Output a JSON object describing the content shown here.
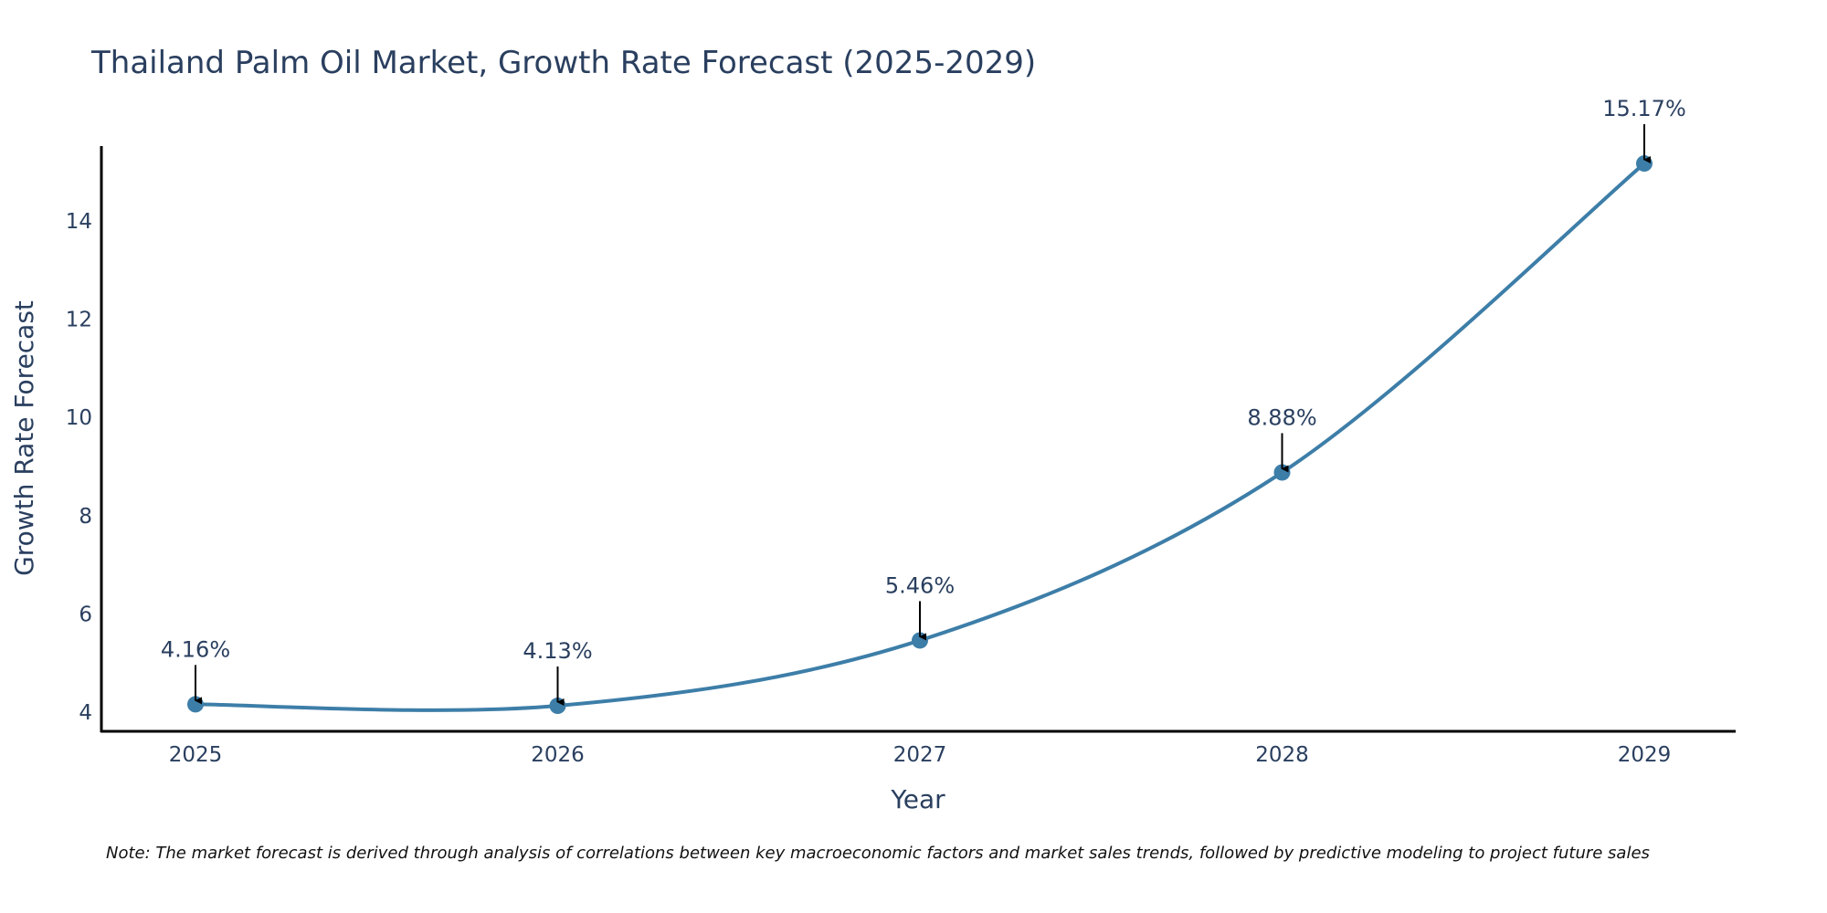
{
  "chart_data": {
    "type": "line",
    "title": "Thailand Palm Oil Market, Growth Rate Forecast (2025-2029)",
    "xlabel": "Year",
    "ylabel": "Growth Rate Forecast",
    "categories": [
      "2025",
      "2026",
      "2027",
      "2028",
      "2029"
    ],
    "values": [
      4.16,
      4.13,
      5.46,
      8.88,
      15.17
    ],
    "data_labels": [
      "4.16%",
      "4.13%",
      "5.46%",
      "8.88%",
      "15.17%"
    ],
    "y_ticks": [
      4,
      6,
      8,
      10,
      12,
      14
    ],
    "ylim": [
      3.6,
      15.75
    ],
    "grid": false,
    "line_shape": "spline",
    "line_color": "#3d7ea8",
    "marker_color": "#3d7ea8",
    "annotation_arrow_color": "#000000",
    "axis_color": "#000000",
    "text_color": "#2a3f5f"
  },
  "note": "Note: The market forecast is derived through analysis of correlations between key macroeconomic factors and market sales trends, followed by predictive modeling to project future sales"
}
